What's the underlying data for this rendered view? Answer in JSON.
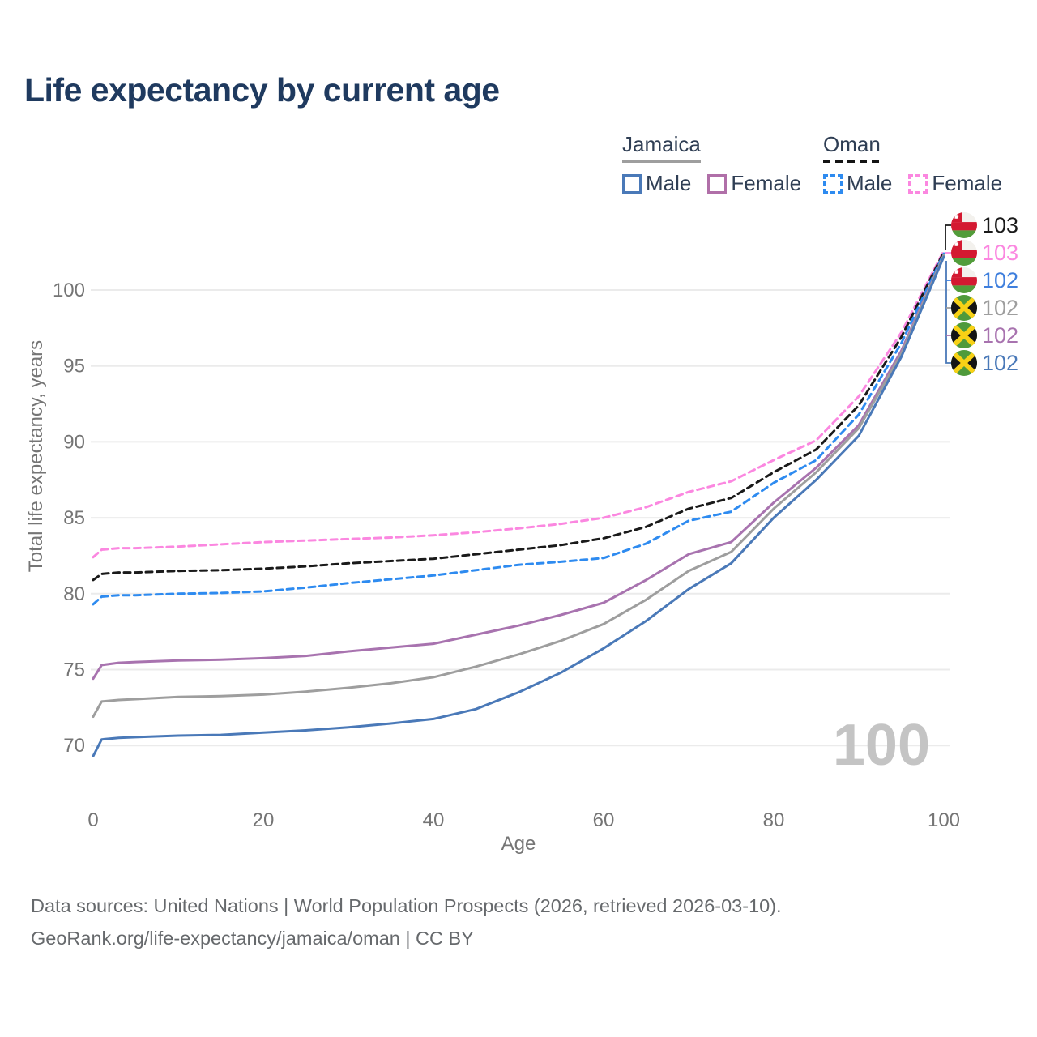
{
  "title": "Life expectancy by current age",
  "watermark": "100",
  "legend": {
    "groups": [
      {
        "label": "Jamaica",
        "line_style": "solid",
        "underline_color": "#9e9e9e",
        "items": [
          {
            "label": "Male",
            "color": "#4a79b8"
          },
          {
            "label": "Female",
            "color": "#b06fa8"
          }
        ]
      },
      {
        "label": "Oman",
        "line_style": "dashed",
        "underline_color": "#141414",
        "items": [
          {
            "label": "Male",
            "color": "#2e8bf0"
          },
          {
            "label": "Female",
            "color": "#fb87e0"
          }
        ]
      }
    ]
  },
  "y_axis": {
    "title": "Total life expectancy, years",
    "ticks": [
      100,
      95,
      90,
      85,
      80,
      75,
      70
    ]
  },
  "x_axis": {
    "title": "Age",
    "ticks": [
      0,
      20,
      40,
      60,
      80,
      100
    ]
  },
  "end_labels": [
    {
      "value": "103",
      "color": "#1a1a1a",
      "flag": "oman"
    },
    {
      "value": "103",
      "color": "#fb87e0",
      "flag": "oman"
    },
    {
      "value": "102",
      "color": "#3f7fdd",
      "flag": "oman"
    },
    {
      "value": "102",
      "color": "#9e9e9e",
      "flag": "jamaica"
    },
    {
      "value": "102",
      "color": "#a873af",
      "flag": "jamaica"
    },
    {
      "value": "102",
      "color": "#4a79b8",
      "flag": "jamaica"
    }
  ],
  "flag_colors": {
    "oman": {
      "red": "#d41931",
      "green": "#529c3a",
      "white": "#f3f1ed"
    },
    "jamaica": {
      "green": "#4f9a3b",
      "black": "#141414",
      "gold": "#f7d116"
    }
  },
  "footer": {
    "line1": "Data sources: United Nations | World Population Prospects (2026, retrieved 2026-03-10).",
    "line2": "GeoRank.org/life-expectancy/jamaica/oman | CC BY"
  },
  "chart_data": {
    "type": "line",
    "xlabel": "Age",
    "ylabel": "Total life expectancy, years",
    "xlim": [
      0,
      100
    ],
    "ylim": [
      70,
      100
    ],
    "grid": "horizontal",
    "legend_position": "top-right",
    "x": [
      0,
      1,
      3,
      5,
      10,
      15,
      20,
      25,
      30,
      35,
      40,
      45,
      50,
      55,
      60,
      65,
      70,
      75,
      80,
      85,
      90,
      95,
      100
    ],
    "series": [
      {
        "name": "Oman Female",
        "country": "Oman",
        "sex": "Female",
        "dash": true,
        "color": "#fb87e0",
        "values": [
          82.4,
          82.9,
          83.0,
          83.0,
          83.1,
          83.25,
          83.4,
          83.5,
          83.6,
          83.7,
          83.85,
          84.05,
          84.3,
          84.6,
          85.0,
          85.7,
          86.7,
          87.4,
          88.8,
          90.1,
          93.0,
          97.2,
          102.6
        ]
      },
      {
        "name": "Oman Total",
        "country": "Oman",
        "sex": "Both",
        "dash": true,
        "color": "#1a1a1a",
        "values": [
          80.9,
          81.3,
          81.4,
          81.4,
          81.5,
          81.55,
          81.65,
          81.8,
          82.0,
          82.15,
          82.3,
          82.6,
          82.9,
          83.2,
          83.65,
          84.4,
          85.6,
          86.3,
          88.0,
          89.5,
          92.4,
          96.9,
          102.5
        ]
      },
      {
        "name": "Oman Male",
        "country": "Oman",
        "sex": "Male",
        "dash": true,
        "color": "#2e8bf0",
        "values": [
          79.3,
          79.8,
          79.9,
          79.9,
          80.0,
          80.05,
          80.15,
          80.4,
          80.7,
          80.95,
          81.2,
          81.55,
          81.9,
          82.1,
          82.35,
          83.3,
          84.8,
          85.4,
          87.3,
          88.8,
          91.8,
          96.5,
          102.4
        ]
      },
      {
        "name": "Jamaica Female",
        "country": "Jamaica",
        "sex": "Female",
        "dash": false,
        "color": "#a873af",
        "values": [
          74.4,
          75.3,
          75.45,
          75.5,
          75.6,
          75.65,
          75.75,
          75.9,
          76.2,
          76.45,
          76.7,
          77.3,
          77.9,
          78.6,
          79.4,
          80.9,
          82.6,
          83.4,
          86.0,
          88.3,
          91.1,
          96.0,
          102.3
        ]
      },
      {
        "name": "Jamaica Total",
        "country": "Jamaica",
        "sex": "Both",
        "dash": false,
        "color": "#9e9e9e",
        "values": [
          71.9,
          72.9,
          73.0,
          73.05,
          73.2,
          73.25,
          73.35,
          73.55,
          73.8,
          74.1,
          74.5,
          75.2,
          76.0,
          76.9,
          78.0,
          79.6,
          81.5,
          82.75,
          85.6,
          88.0,
          90.9,
          95.8,
          102.3
        ]
      },
      {
        "name": "Jamaica Male",
        "country": "Jamaica",
        "sex": "Male",
        "dash": false,
        "color": "#4a79b8",
        "values": [
          69.3,
          70.4,
          70.5,
          70.55,
          70.65,
          70.7,
          70.85,
          71.0,
          71.2,
          71.45,
          71.75,
          72.4,
          73.5,
          74.8,
          76.4,
          78.2,
          80.3,
          82.0,
          85.0,
          87.5,
          90.4,
          95.6,
          102.2
        ]
      }
    ]
  }
}
